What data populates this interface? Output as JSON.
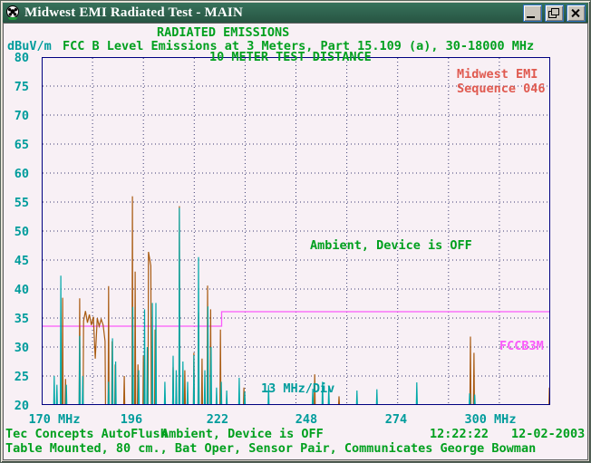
{
  "window": {
    "title": "Midwest EMI Radiated Test - MAIN"
  },
  "icons": {
    "app": "soccer-ball-icon",
    "minimize": "minimize-icon",
    "restore": "restore-icon",
    "close": "close-icon"
  },
  "header": {
    "title": "RADIATED EMISSIONS",
    "subtitle": "FCC B Level Emissions at 3 Meters, Part 15.109 (a), 30-18000 MHz",
    "unit": "dBuV/m",
    "distance": "10 METER TEST DISTANCE"
  },
  "sequence": {
    "line1": "Midwest EMI",
    "line2": "Sequence 046"
  },
  "annotations": {
    "ambient": "Ambient, Device is OFF",
    "limit_label": "FCCB3M",
    "per_division": "13 MHz/Div"
  },
  "status": {
    "program": "Tec Concepts AutoFlush",
    "condition": "Ambient, Device is OFF",
    "time": "12:22:22",
    "date": "12-02-2003",
    "line2": "Table Mounted, 80 cm., Bat Oper, Sensor Pair, Communicates George Bowman"
  },
  "colors": {
    "background": "#F8F0F5",
    "titlebar": "#2F6A54",
    "green_text": "#00A01E",
    "teal_text": "#009C9C",
    "red_text": "#E05A50",
    "magenta_limit": "#FA5AFA",
    "navy_border": "#000080",
    "peak_trace": "#A85A10",
    "ambient_trace": "#00A8A8",
    "grid_dots": "#3C3C74"
  },
  "chart_data": {
    "type": "line",
    "title": "RADIATED EMISSIONS",
    "ylabel": "dBuV/m",
    "x_axis": {
      "min": 170,
      "max": 300,
      "div_mhz": 13,
      "tick_labels": [
        "170 MHz",
        "196",
        "222",
        "248",
        "274",
        "300 MHz"
      ]
    },
    "y_axis": {
      "min": 20,
      "max": 80,
      "step": 5,
      "unit": "dBuV/m"
    },
    "limit_line": {
      "label": "FCCB3M",
      "color": "#FA5AFA",
      "points": [
        [
          170,
          33.6
        ],
        [
          216,
          33.6
        ],
        [
          216,
          36.1
        ],
        [
          300,
          36.1
        ]
      ]
    },
    "series": [
      {
        "name": "peak-hold",
        "color": "#A85A10",
        "points": [
          [
            175.35,
            38.5
          ],
          [
            176.1,
            24.5
          ],
          [
            179.7,
            38.4
          ],
          [
            180.7,
            34.5
          ],
          [
            181.2,
            36.2
          ],
          [
            181.7,
            34.2
          ],
          [
            182.2,
            35.6
          ],
          [
            182.7,
            33.8
          ],
          [
            183.2,
            35.2
          ],
          [
            183.7,
            28
          ],
          [
            184.2,
            35
          ],
          [
            184.7,
            33.6
          ],
          [
            185.2,
            34.8
          ],
          [
            185.7,
            33.8
          ],
          [
            186.2,
            31
          ],
          [
            187.1,
            40.5
          ],
          [
            188,
            31
          ],
          [
            188.8,
            27
          ],
          [
            191.1,
            25
          ],
          [
            193.2,
            56
          ],
          [
            193.9,
            43
          ],
          [
            194.6,
            27
          ],
          [
            196,
            28.5
          ],
          [
            197.3,
            46.4
          ],
          [
            197.9,
            44
          ],
          [
            199,
            33
          ],
          [
            203.6,
            26.5
          ],
          [
            205.2,
            54.3
          ],
          [
            206.6,
            26
          ],
          [
            208.9,
            29
          ],
          [
            210.1,
            36
          ],
          [
            211,
            28
          ],
          [
            212.4,
            40.6
          ],
          [
            213.2,
            36.5
          ],
          [
            215.7,
            33
          ],
          [
            221.7,
            23
          ],
          [
            239.8,
            25.3
          ],
          [
            246,
            21.5
          ],
          [
            279.6,
            31.8
          ],
          [
            280.5,
            29
          ],
          [
            299.8,
            23
          ]
        ]
      },
      {
        "name": "ambient",
        "color": "#00A8A8",
        "points": [
          [
            173.2,
            25
          ],
          [
            173.9,
            23.5
          ],
          [
            174.9,
            42.3
          ],
          [
            176.3,
            23.5
          ],
          [
            179.7,
            31.9
          ],
          [
            180.5,
            25
          ],
          [
            187.1,
            24
          ],
          [
            188.1,
            31.5
          ],
          [
            188.9,
            27.5
          ],
          [
            193.3,
            36.9
          ],
          [
            194.8,
            26
          ],
          [
            196.3,
            36.5
          ],
          [
            197,
            30
          ],
          [
            198.3,
            37.6
          ],
          [
            199.2,
            37.6
          ],
          [
            201.5,
            24
          ],
          [
            203.6,
            28.5
          ],
          [
            204.4,
            26
          ],
          [
            205.2,
            54
          ],
          [
            206.1,
            27.5
          ],
          [
            207.3,
            24
          ],
          [
            208.9,
            28.6
          ],
          [
            210.1,
            45.5
          ],
          [
            211.7,
            26
          ],
          [
            212.5,
            37
          ],
          [
            213.3,
            30
          ],
          [
            214.7,
            23
          ],
          [
            215.9,
            24
          ],
          [
            217.3,
            22.5
          ],
          [
            220.5,
            24.7
          ],
          [
            221.9,
            22.3
          ],
          [
            228,
            23.4
          ],
          [
            239.3,
            22.8
          ],
          [
            241.8,
            24
          ],
          [
            243.4,
            23.1
          ],
          [
            250.6,
            22.5
          ],
          [
            255.7,
            22.7
          ],
          [
            265.9,
            23.9
          ],
          [
            279.4,
            22
          ],
          [
            280.7,
            21.8
          ]
        ]
      }
    ]
  }
}
